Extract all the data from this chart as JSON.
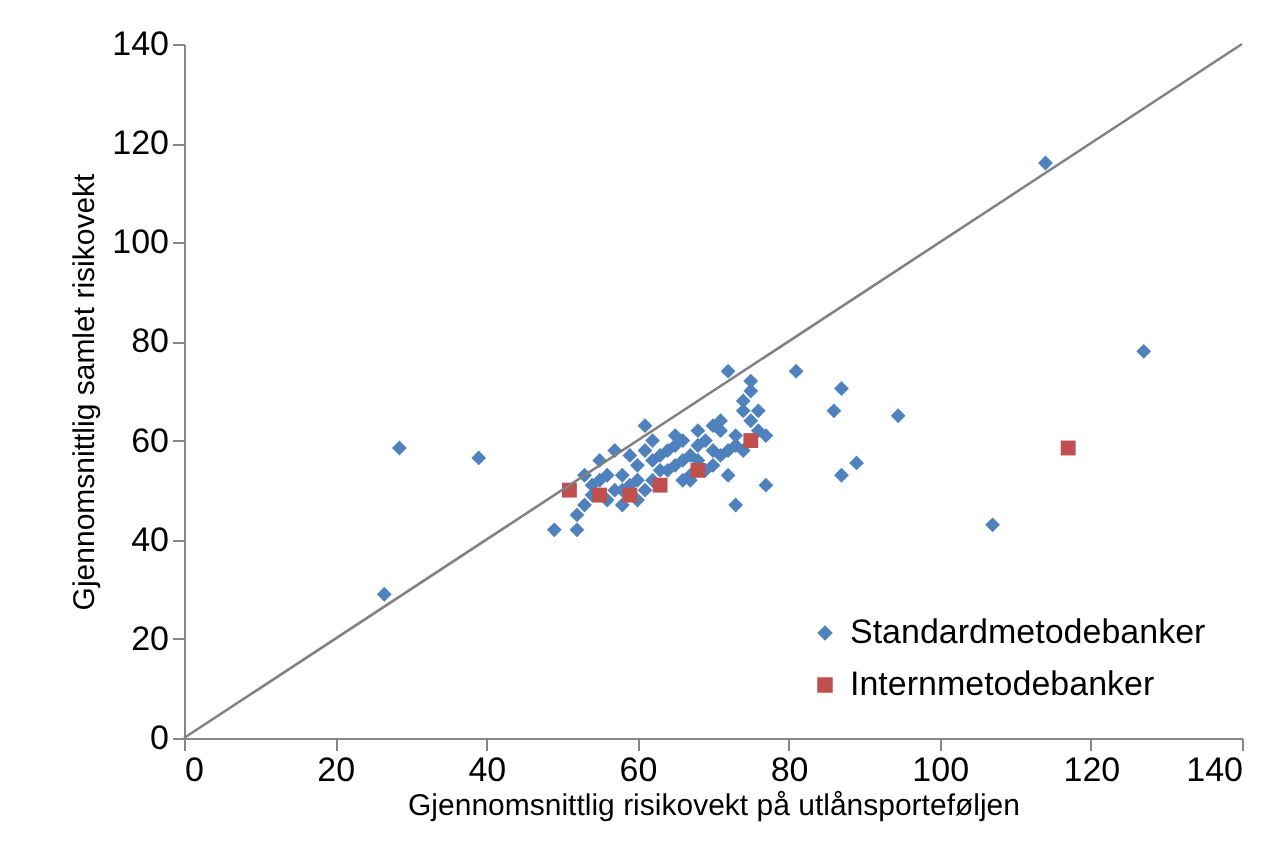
{
  "chart_data": {
    "type": "scatter",
    "xlabel": "Gjennomsnittlig risikovekt på utlånsporteføljen",
    "ylabel": "Gjennomsnittlig samlet risikovekt",
    "xlim": [
      0,
      140
    ],
    "ylim": [
      0,
      140
    ],
    "xticks": [
      0,
      20,
      40,
      60,
      80,
      100,
      120,
      140
    ],
    "yticks": [
      0,
      20,
      40,
      60,
      80,
      100,
      120,
      140
    ],
    "grid": false,
    "legend": "bottom right",
    "series": [
      {
        "name": "Standardmetodebanker",
        "color": "#4f81bd",
        "marker": "diamond",
        "x": [
          26.5,
          28.5,
          39,
          49,
          52,
          52,
          53,
          54,
          55,
          56,
          57,
          58,
          58,
          59,
          60,
          60,
          61,
          62,
          62,
          63,
          64,
          64,
          65,
          65,
          66,
          66,
          66,
          67,
          67,
          68,
          68,
          69,
          70,
          70,
          71,
          71,
          72,
          72,
          73,
          73,
          73,
          74,
          74,
          75,
          75,
          75,
          76,
          77,
          77,
          81,
          86,
          87,
          87,
          89,
          94.5,
          107,
          114,
          127,
          53,
          56,
          57,
          58,
          61,
          59,
          63,
          54,
          55,
          67,
          69,
          72,
          74,
          76,
          60,
          61,
          62,
          65,
          68,
          70,
          71
        ],
        "values": [
          29,
          58.5,
          56.5,
          42,
          42,
          45,
          47,
          51,
          56,
          48,
          58,
          47,
          53,
          57,
          48,
          55,
          63,
          52,
          56,
          57,
          54,
          58,
          55,
          59,
          52,
          56,
          60,
          57,
          53,
          59,
          56,
          60,
          55,
          58,
          62,
          57,
          74,
          53,
          59,
          47,
          61,
          66,
          68,
          70,
          64,
          72,
          62,
          61,
          51,
          74,
          66,
          70.5,
          53,
          55.5,
          65,
          43,
          116,
          78,
          53,
          53,
          50,
          50,
          50,
          51,
          54,
          49,
          52,
          52,
          54,
          58,
          58,
          66,
          52,
          58,
          60,
          61,
          62,
          63,
          64
        ]
      },
      {
        "name": "Internmetodebanker",
        "color": "#c0504d",
        "marker": "square",
        "x": [
          51,
          55,
          59,
          63,
          68,
          75,
          117
        ],
        "values": [
          50,
          49,
          49,
          51,
          54,
          60,
          58.5
        ]
      },
      {
        "type": "line",
        "color": "#808080",
        "marker": "none",
        "x": [
          0,
          140
        ],
        "values": [
          0,
          140
        ]
      }
    ]
  }
}
